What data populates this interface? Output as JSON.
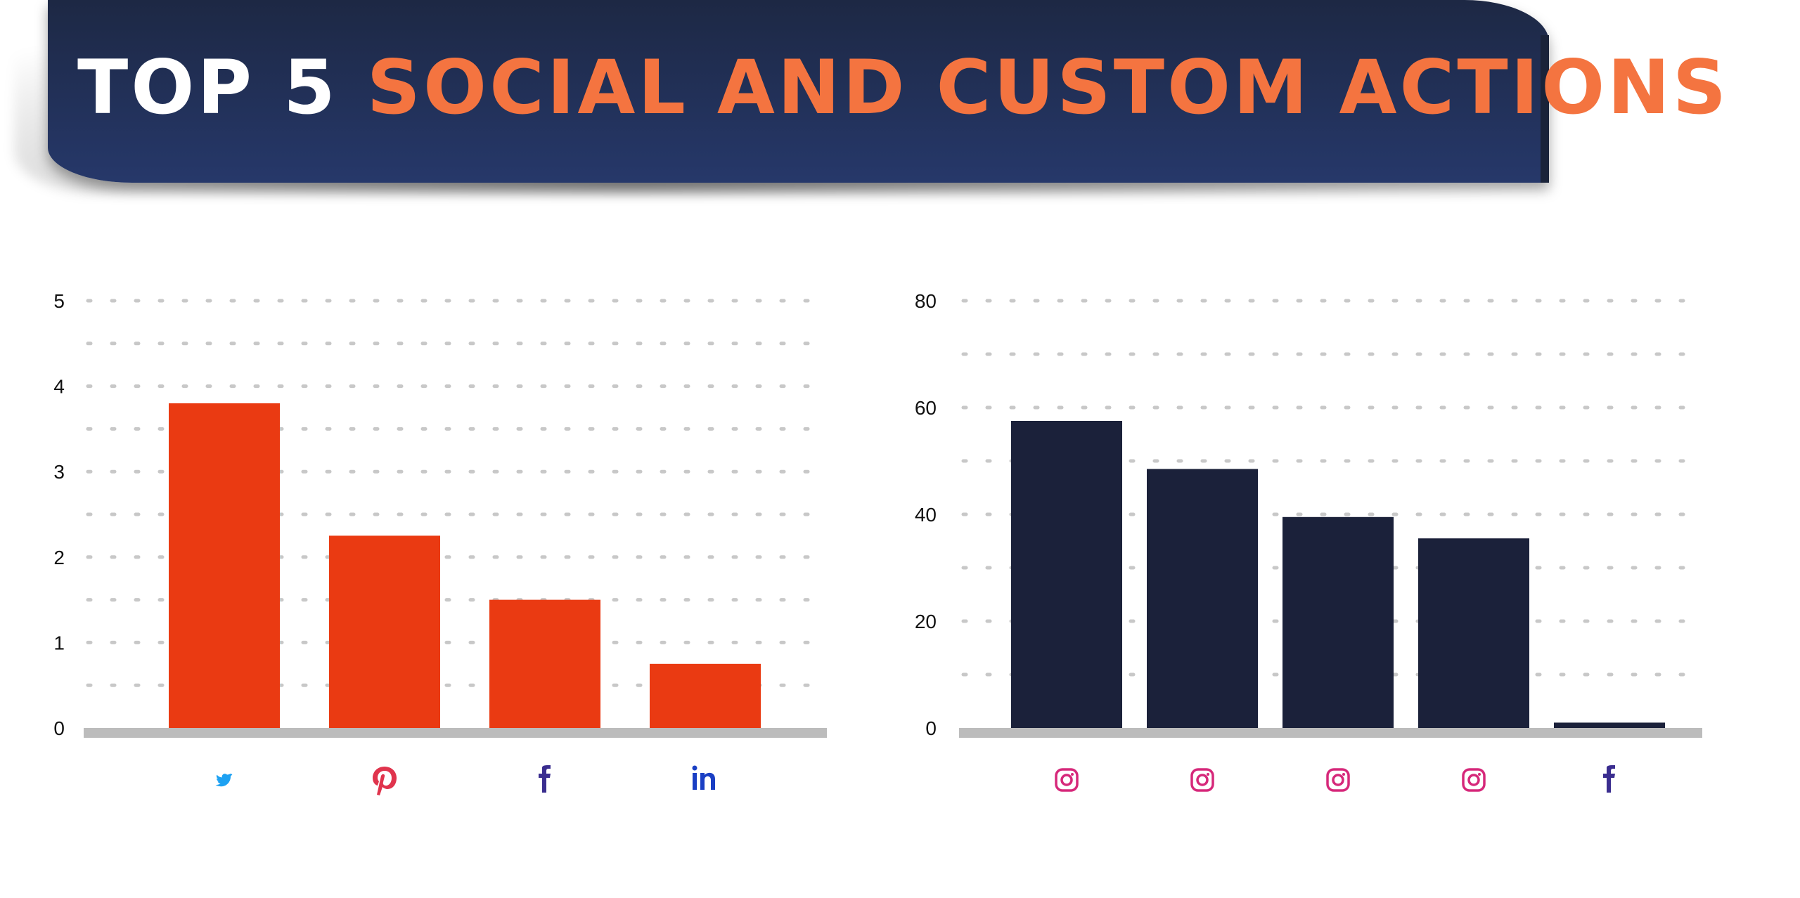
{
  "header": {
    "title_prefix": "TOP 5",
    "title_highlight": "SOCIAL AND CUSTOM ACTIONS",
    "colors": {
      "background": "#26386a",
      "prefix": "#ffffff",
      "highlight": "#f47440"
    }
  },
  "chart_data": [
    {
      "type": "bar",
      "categories": [
        "twitter-icon",
        "pinterest-icon",
        "facebook-icon",
        "linkedin-icon"
      ],
      "values": [
        3.8,
        2.25,
        1.5,
        0.75
      ],
      "ylim": [
        0,
        5
      ],
      "yticks": [
        "0",
        "1",
        "2",
        "3",
        "4",
        "5"
      ],
      "grid": "dotted",
      "bar_color": "#ea3a12",
      "icon_colors": [
        "#1da1f2",
        "#e0344d",
        "#3a2d8f",
        "#1a3fc4"
      ]
    },
    {
      "type": "bar",
      "categories": [
        "instagram-icon",
        "instagram-icon",
        "instagram-icon",
        "instagram-icon",
        "facebook-icon"
      ],
      "values": [
        57.5,
        48.5,
        39.5,
        35.5,
        1
      ],
      "ylim": [
        0,
        80
      ],
      "yticks": [
        "0",
        "20",
        "40",
        "60",
        "80"
      ],
      "grid": "dotted",
      "bar_color": "#1b213a",
      "icon_colors": [
        "#d6287a",
        "#d6287a",
        "#d6287a",
        "#d6287a",
        "#3a2d8f"
      ]
    }
  ]
}
